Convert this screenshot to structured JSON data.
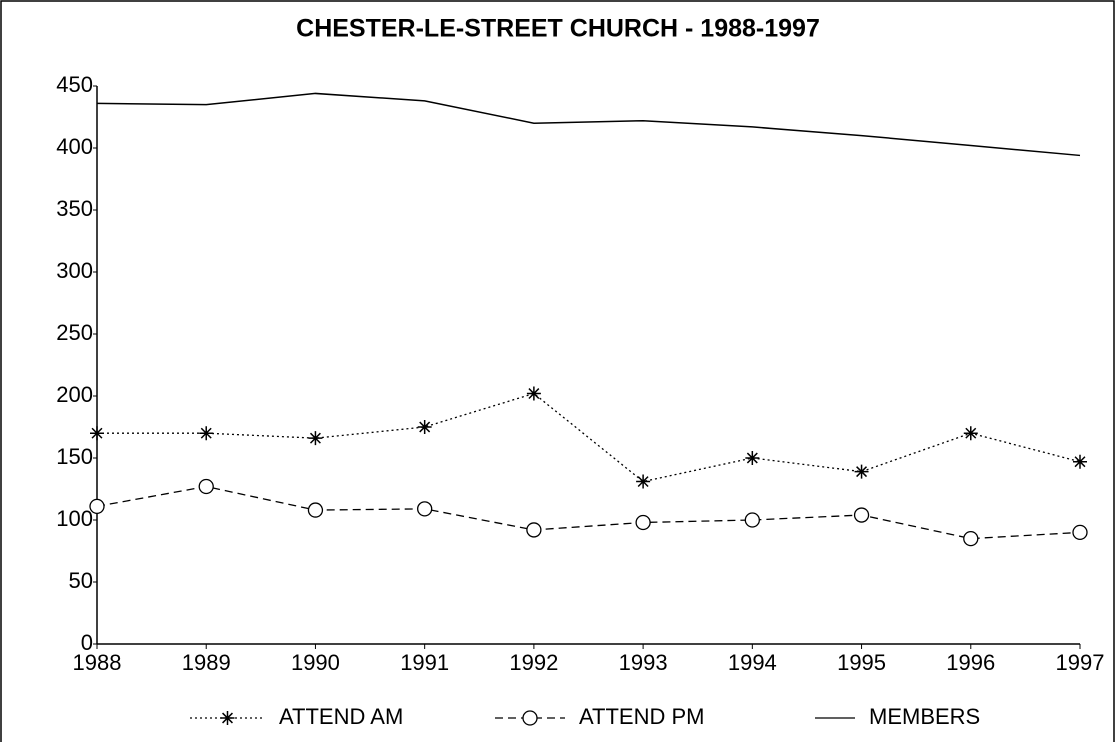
{
  "chart_data": {
    "type": "line",
    "title": "CHESTER-LE-STREET CHURCH - 1988-1997",
    "x": [
      1988,
      1989,
      1990,
      1991,
      1992,
      1993,
      1994,
      1995,
      1996,
      1997
    ],
    "xlim": [
      1988,
      1997
    ],
    "xticks": [
      1988,
      1989,
      1990,
      1991,
      1992,
      1993,
      1994,
      1995,
      1996,
      1997
    ],
    "ylim": [
      0,
      450
    ],
    "yticks": [
      0,
      50,
      100,
      150,
      200,
      250,
      300,
      350,
      400,
      450
    ],
    "grid": false,
    "legend": "bottom",
    "series": [
      {
        "name": "ATTEND AM",
        "color": "#000000",
        "marker": "star",
        "line_style": "dotted",
        "values": [
          170,
          170,
          166,
          175,
          202,
          131,
          150,
          139,
          170,
          147
        ]
      },
      {
        "name": "ATTEND PM",
        "color": "#000000",
        "marker": "circle",
        "line_style": "dashed",
        "values": [
          111,
          127,
          108,
          109,
          92,
          98,
          100,
          104,
          85,
          90
        ]
      },
      {
        "name": "MEMBERS",
        "color": "#000000",
        "marker": "none",
        "line_style": "solid",
        "values": [
          436,
          435,
          444,
          438,
          420,
          422,
          417,
          410,
          402,
          394
        ]
      }
    ]
  }
}
